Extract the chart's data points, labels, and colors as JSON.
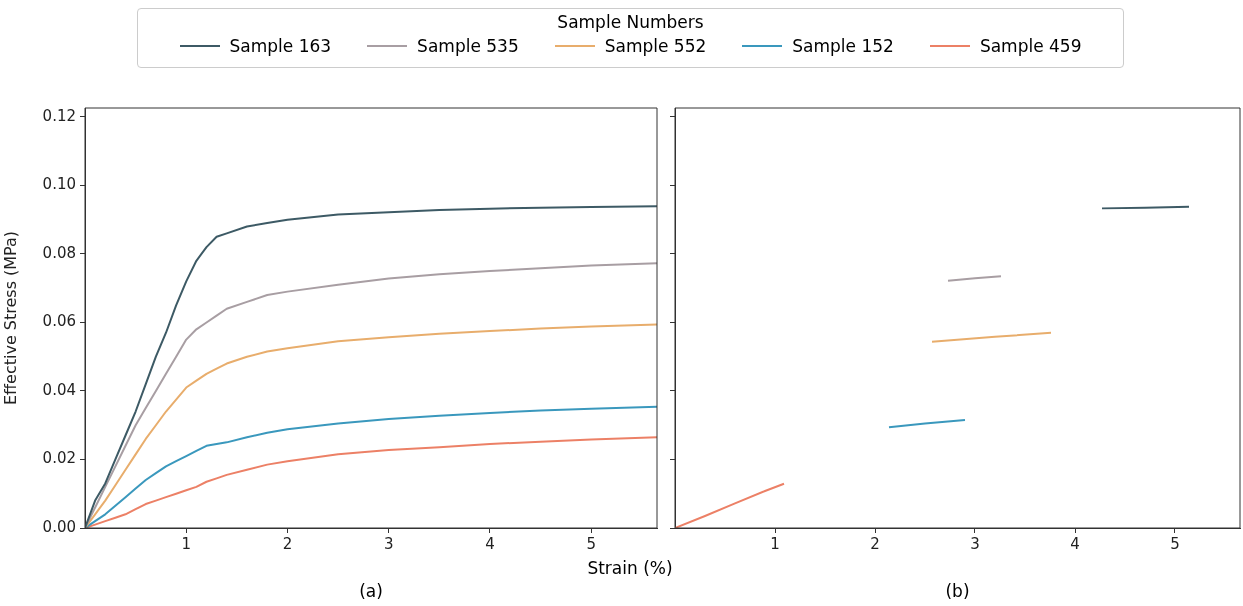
{
  "chart_data": [
    {
      "type": "line",
      "title": "(a)",
      "xlabel": "Strain (%)",
      "ylabel": "Effective Stress (MPa)",
      "legend_title": "Sample Numbers",
      "legend": "top",
      "grid": false,
      "xlim": [
        0,
        5.65
      ],
      "xticks": [
        1,
        2,
        3,
        4,
        5
      ],
      "ylim": [
        0,
        0.1226
      ],
      "yticks": [
        {
          "value": 0,
          "label": "0.00"
        },
        {
          "value": 0.02,
          "label": "0.02"
        },
        {
          "value": 0.04,
          "label": "0.04"
        },
        {
          "value": 0.06,
          "label": "0.06"
        },
        {
          "value": 0.08,
          "label": "0.08"
        },
        {
          "value": 0.1,
          "label": "0.10"
        },
        {
          "value": 0.12,
          "label": "0.12"
        }
      ],
      "x": [
        0,
        0.1,
        0.2,
        0.3,
        0.4,
        0.5,
        0.6,
        0.7,
        0.8,
        0.9,
        1.0,
        1.1,
        1.2,
        1.3,
        1.4,
        1.6,
        1.8,
        2,
        2.5,
        3,
        3.5,
        4,
        4.5,
        5,
        5.65
      ],
      "series": [
        {
          "name": "Sample 163",
          "color": "#3d5a65",
          "values": [
            0,
            0.008,
            0.013,
            0.02,
            0.027,
            0.034,
            0.042,
            0.05,
            0.057,
            0.065,
            0.072,
            0.078,
            0.082,
            0.085,
            0.086,
            0.088,
            0.089,
            0.09,
            0.0915,
            0.0922,
            0.0928,
            0.0932,
            0.0935,
            0.0937,
            0.0939
          ]
        },
        {
          "name": "Sample 535",
          "color": "#a89ea3",
          "values": [
            0,
            0.006,
            0.012,
            0.018,
            0.024,
            0.03,
            0.035,
            0.04,
            0.045,
            0.05,
            0.055,
            0.058,
            0.06,
            0.062,
            0.064,
            0.066,
            0.068,
            0.069,
            0.071,
            0.0728,
            0.0741,
            0.075,
            0.0758,
            0.0766,
            0.0773
          ]
        },
        {
          "name": "Sample 552",
          "color": "#e8ad6c",
          "values": [
            0,
            0.004,
            0.008,
            0.0125,
            0.017,
            0.0215,
            0.026,
            0.03,
            0.034,
            0.0375,
            0.041,
            0.043,
            0.045,
            0.0465,
            0.048,
            0.05,
            0.0515,
            0.0525,
            0.0545,
            0.0557,
            0.0567,
            0.0575,
            0.0582,
            0.0588,
            0.0594
          ]
        },
        {
          "name": "Sample 152",
          "color": "#3a98bd",
          "values": [
            0,
            0.002,
            0.004,
            0.0065,
            0.009,
            0.0115,
            0.014,
            0.016,
            0.018,
            0.0195,
            0.021,
            0.0225,
            0.024,
            0.0245,
            0.025,
            0.0265,
            0.0278,
            0.0288,
            0.0305,
            0.0318,
            0.0328,
            0.0336,
            0.0343,
            0.0348,
            0.0354
          ]
        },
        {
          "name": "Sample 459",
          "color": "#ec8066",
          "values": [
            0,
            0.001,
            0.002,
            0.003,
            0.004,
            0.0055,
            0.007,
            0.008,
            0.009,
            0.01,
            0.011,
            0.012,
            0.0135,
            0.0145,
            0.0155,
            0.017,
            0.0185,
            0.0195,
            0.0215,
            0.0228,
            0.0236,
            0.0245,
            0.0252,
            0.0258,
            0.0265
          ]
        }
      ]
    },
    {
      "type": "line",
      "title": "(b)",
      "grid": false,
      "tick_labels": "x",
      "xlim": [
        0,
        5.65
      ],
      "xticks": [
        1,
        2,
        3,
        4,
        5
      ],
      "ylim": [
        0,
        0.1226
      ],
      "yticks": [
        0,
        0.02,
        0.04,
        0.06,
        0.08,
        0.1,
        0.12
      ],
      "series": [
        {
          "name": "Sample 163",
          "color": "#3d5a65",
          "x": [
            4.27,
            4.7,
            5.14
          ],
          "values": [
            0.0933,
            0.0935,
            0.0938
          ]
        },
        {
          "name": "Sample 535",
          "color": "#a89ea3",
          "x": [
            2.73,
            3.0,
            3.26
          ],
          "values": [
            0.0722,
            0.0729,
            0.0735
          ]
        },
        {
          "name": "Sample 552",
          "color": "#e8ad6c",
          "x": [
            2.57,
            3.2,
            3.76
          ],
          "values": [
            0.0544,
            0.0558,
            0.057
          ]
        },
        {
          "name": "Sample 152",
          "color": "#3a98bd",
          "x": [
            2.14,
            2.5,
            2.9
          ],
          "values": [
            0.0294,
            0.0305,
            0.0315
          ]
        },
        {
          "name": "Sample 459",
          "color": "#ec8066",
          "x": [
            0,
            0.3,
            0.6,
            0.9,
            1.09
          ],
          "values": [
            0,
            0.0035,
            0.0072,
            0.0108,
            0.0129
          ]
        }
      ]
    }
  ]
}
